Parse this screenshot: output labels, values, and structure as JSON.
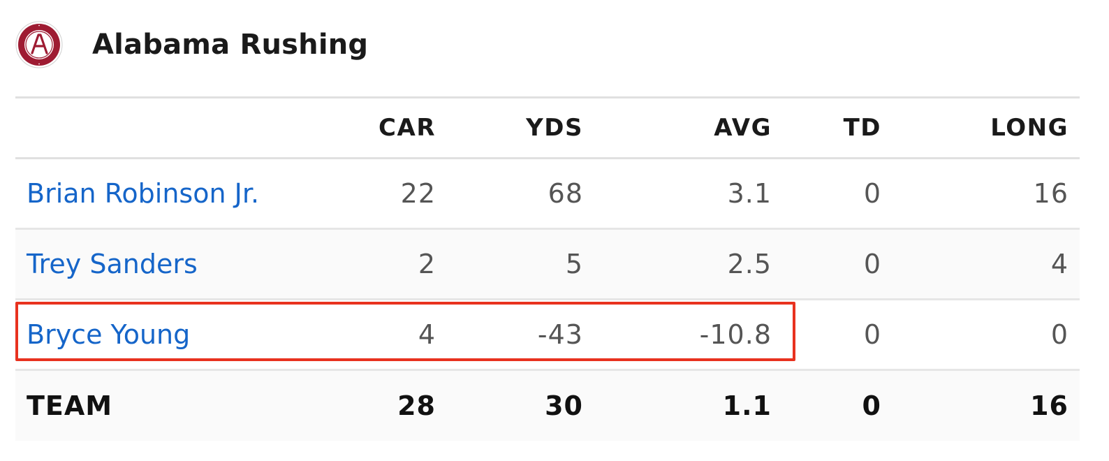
{
  "header": {
    "title": "Alabama Rushing",
    "logo_icon": "alabama-crimson-tide-logo",
    "logo_color": "#9e1b32"
  },
  "table": {
    "columns": [
      "CAR",
      "YDS",
      "AVG",
      "TD",
      "LONG"
    ],
    "rows": [
      {
        "name": "Brian Robinson Jr.",
        "car": "22",
        "yds": "68",
        "avg": "3.1",
        "td": "0",
        "long": "16"
      },
      {
        "name": "Trey Sanders",
        "car": "2",
        "yds": "5",
        "avg": "2.5",
        "td": "0",
        "long": "4"
      },
      {
        "name": "Bryce Young",
        "car": "4",
        "yds": "-43",
        "avg": "-10.8",
        "td": "0",
        "long": "0"
      }
    ],
    "team": {
      "name": "TEAM",
      "car": "28",
      "yds": "30",
      "avg": "1.1",
      "td": "0",
      "long": "16"
    }
  },
  "colors": {
    "link": "#1565c9",
    "highlight": "#e8321f"
  }
}
